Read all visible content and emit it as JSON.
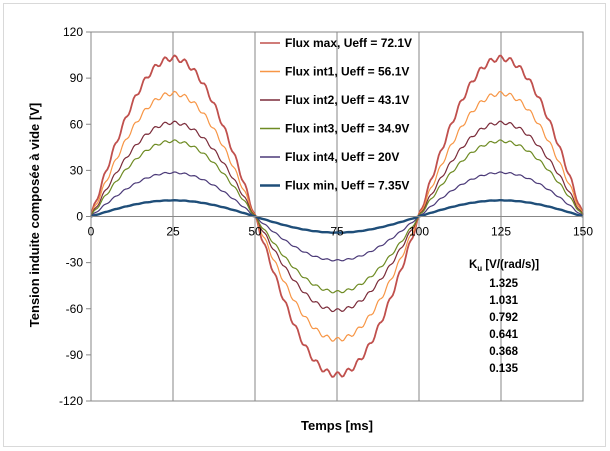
{
  "chart_data": {
    "type": "line",
    "xlabel": "Temps [ms]",
    "ylabel": "Tension induite composée à vide [V]",
    "xlim": [
      0,
      150
    ],
    "ylim": [
      -120,
      120
    ],
    "x_ticks": [
      0,
      25,
      50,
      75,
      100,
      125,
      150
    ],
    "y_ticks": [
      120,
      90,
      60,
      30,
      0,
      -30,
      -60,
      -90,
      -120
    ],
    "grid": "vertical gridlines at x ticks",
    "period_ms": 100,
    "waveform": "sinusoidal, zero at 0, 50, 100, 150 ms, peaks at 25 and 125 ms, troughs at 75 ms",
    "legend_position": "top-center",
    "series": [
      {
        "name": "Flux max, Ueff = 72.1V",
        "amplitude": 103,
        "color": "#C0504D"
      },
      {
        "name": "Flux int1, Ueff = 56.1V",
        "amplitude": 80,
        "color": "#F79646"
      },
      {
        "name": "Flux int2, Ueff = 43.1V",
        "amplitude": 61,
        "color": "#7B2C3A"
      },
      {
        "name": "Flux int3, Ueff = 34.9V",
        "amplitude": 49,
        "color": "#6E8B23"
      },
      {
        "name": "Flux int4, Ueff = 20V",
        "amplitude": 28.5,
        "color": "#4B3A78"
      },
      {
        "name": "Flux min, Ueff = 7.35V",
        "amplitude": 10.5,
        "color": "#1F4E79"
      }
    ],
    "ku_table": {
      "header_main": "K",
      "header_sub": "u",
      "header_rest": " [V/(rad/s)]",
      "values": [
        "1.325",
        "1.031",
        "0.792",
        "0.641",
        "0.368",
        "0.135"
      ]
    }
  }
}
